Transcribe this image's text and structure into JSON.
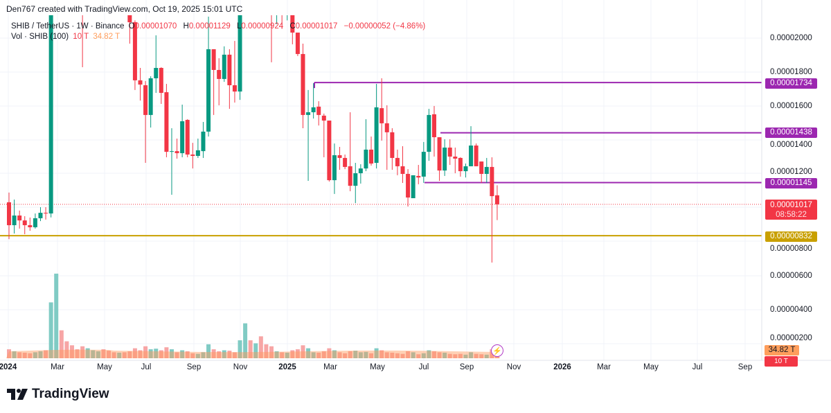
{
  "attribution": "Den767 created with TradingView.com, Oct 19, 2025 15:01 UTC",
  "legend": {
    "symbol": "SHIB / TetherUS · 1W · Binance",
    "open_label": "O",
    "open": "0.00001070",
    "high_label": "H",
    "high": "0.00001129",
    "low_label": "L",
    "low": "0.00000924",
    "close_label": "C",
    "close": "0.00001017",
    "change": "−0.00000052 (−4.86%)",
    "volume_label": "Vol · SHIB (100)",
    "volume": "10 T",
    "volume_ma": "34.82 T"
  },
  "colors": {
    "up": "#089981",
    "down": "#f23645",
    "level": "#9c27b0",
    "support": "#c9a000",
    "volume_ma": "#ff9e5c"
  },
  "price_axis": {
    "ticks": [
      "0.00002000",
      "0.00001800",
      "0.00001600",
      "0.00001400",
      "0.00001200",
      "0.00000800",
      "0.00000600",
      "0.00000400",
      "0.00000200"
    ]
  },
  "price_tags": {
    "level_1": "0.00001734",
    "level_2": "0.00001438",
    "level_3": "0.00001145",
    "last_price": "0.00001017",
    "countdown": "08:58:22",
    "support": "0.00000832",
    "volume_ma": "34.82 T",
    "volume": "10 T"
  },
  "time_axis": {
    "labels": [
      "2024",
      "Mar",
      "May",
      "Jul",
      "Sep",
      "Nov",
      "2025",
      "Mar",
      "May",
      "Jul",
      "Sep",
      "Nov",
      "2026",
      "Mar",
      "May",
      "Jul",
      "Sep"
    ]
  },
  "brand": "TradingView",
  "chart_data": {
    "type": "candlestick",
    "interval": "1W",
    "levels": [
      1.734e-05,
      1.438e-05,
      1.145e-05,
      8.32e-06
    ],
    "candles_ohlc": [
      [
        1.029e-05,
        1.086e-05,
        8.12e-06,
        8.94e-06
      ],
      [
        8.94e-06,
        1.045e-05,
        8.45e-06,
        9.51e-06
      ],
      [
        9.51e-06,
        9.8e-06,
        8.74e-06,
        9.22e-06
      ],
      [
        9.22e-06,
        9.47e-06,
        8.41e-06,
        8.94e-06
      ],
      [
        8.94e-06,
        9.39e-06,
        8.61e-06,
        8.82e-06
      ],
      [
        8.82e-06,
        9.63e-06,
        8.74e-06,
        9.35e-06
      ],
      [
        9.35e-06,
        1e-05,
        9.18e-06,
        9.67e-06
      ],
      [
        9.67e-06,
        1e-05,
        9.27e-06,
        9.63e-06
      ],
      [
        9.63e-06,
        2.9e-05,
        9.4e-06,
        2.72e-05
      ],
      [
        2.72e-05,
        4.5e-05,
        2.5e-05,
        3.4e-05
      ],
      [
        3.4e-05,
        3.9e-05,
        2.7e-05,
        3.05e-05
      ],
      [
        3.05e-05,
        3.3e-05,
        2.65e-05,
        2.9e-05
      ],
      [
        2.9e-05,
        3.2e-05,
        2.55e-05,
        2.8e-05
      ],
      [
        2.8e-05,
        3.05e-05,
        2.5e-05,
        2.6e-05
      ],
      [
        2.6e-05,
        2.8e-05,
        1.824e-05,
        2.3e-05
      ],
      [
        2.3e-05,
        2.75e-05,
        2.2e-05,
        2.55e-05
      ],
      [
        2.55e-05,
        2.9e-05,
        2.4e-05,
        2.7e-05
      ],
      [
        2.7e-05,
        2.95e-05,
        2.6e-05,
        2.85e-05
      ],
      [
        2.85e-05,
        3e-05,
        2.55e-05,
        2.65e-05
      ],
      [
        2.65e-05,
        2.8e-05,
        2.45e-05,
        2.5e-05
      ],
      [
        2.5e-05,
        2.65e-05,
        2.3e-05,
        2.35e-05
      ],
      [
        2.35e-05,
        2.6e-05,
        2.2e-05,
        2.45e-05
      ],
      [
        2.45e-05,
        2.55e-05,
        2.15e-05,
        2.18e-05
      ],
      [
        2.18e-05,
        2.25e-05,
        1.963e-05,
        2.089e-05
      ],
      [
        2.089e-05,
        2.1e-05,
        1.69e-05,
        1.747e-05
      ],
      [
        1.747e-05,
        1.82e-05,
        1.628e-05,
        1.722e-05
      ],
      [
        1.718e-05,
        1.743e-05,
        1.261e-05,
        1.543e-05
      ],
      [
        1.543e-05,
        1.771e-05,
        1.469e-05,
        1.759e-05
      ],
      [
        1.759e-05,
        2.012e-05,
        1.673e-05,
        1.82e-05
      ],
      [
        1.82e-05,
        1.824e-05,
        1.608e-05,
        1.673e-05
      ],
      [
        1.677e-05,
        1.726e-05,
        1.294e-05,
        1.326e-05
      ],
      [
        1.326e-05,
        1.465e-05,
        1.073e-05,
        1.33e-05
      ],
      [
        1.33e-05,
        1.404e-05,
        1.286e-05,
        1.318e-05
      ],
      [
        1.318e-05,
        1.604e-05,
        1.294e-05,
        1.506e-05
      ],
      [
        1.514e-05,
        1.518e-05,
        1.294e-05,
        1.31e-05
      ],
      [
        1.31e-05,
        1.379e-05,
        1.228e-05,
        1.302e-05
      ],
      [
        1.302e-05,
        1.404e-05,
        1.29e-05,
        1.335e-05
      ],
      [
        1.33e-05,
        1.502e-05,
        1.29e-05,
        1.445e-05
      ],
      [
        1.445e-05,
        2.122e-05,
        1.416e-05,
        1.93e-05
      ],
      [
        1.93e-05,
        1.93e-05,
        1.543e-05,
        1.808e-05
      ],
      [
        1.808e-05,
        1.877e-05,
        1.6e-05,
        1.755e-05
      ],
      [
        1.755e-05,
        1.947e-05,
        1.738e-05,
        1.898e-05
      ],
      [
        1.898e-05,
        1.93e-05,
        1.579e-05,
        1.718e-05
      ],
      [
        1.718e-05,
        1.979e-05,
        1.616e-05,
        1.681e-05
      ],
      [
        1.681e-05,
        2.7e-05,
        1.632e-05,
        2.5e-05
      ],
      [
        2.5e-05,
        3e-05,
        2.3e-05,
        2.7e-05
      ],
      [
        2.7e-05,
        2.9e-05,
        2.35e-05,
        2.45e-05
      ],
      [
        2.45e-05,
        2.7e-05,
        2.3e-05,
        2.6e-05
      ],
      [
        2.6e-05,
        2.85e-05,
        2.4e-05,
        2.5e-05
      ],
      [
        2.5e-05,
        2.7e-05,
        2.35e-05,
        2.4e-05
      ],
      [
        2.4e-05,
        2.55e-05,
        1.853e-05,
        2.2e-05
      ],
      [
        2.2e-05,
        2.45e-05,
        2.077e-05,
        2.3e-05
      ],
      [
        2.3e-05,
        2.4e-05,
        2.05e-05,
        2.15e-05
      ],
      [
        2.15e-05,
        2.3e-05,
        2.1e-05,
        2.2e-05
      ],
      [
        2.18e-05,
        2.23e-05,
        1.959e-05,
        2.028e-05
      ],
      [
        2.028e-05,
        2.028e-05,
        1.89e-05,
        1.902e-05
      ],
      [
        1.902e-05,
        1.963e-05,
        1.465e-05,
        1.543e-05
      ],
      [
        1.543e-05,
        1.69e-05,
        1.155e-05,
        1.559e-05
      ],
      [
        1.559e-05,
        1.73e-05,
        1.522e-05,
        1.588e-05
      ],
      [
        1.592e-05,
        1.624e-05,
        1.481e-05,
        1.543e-05
      ],
      [
        1.539e-05,
        1.551e-05,
        1.294e-05,
        1.51e-05
      ],
      [
        1.51e-05,
        1.51e-05,
        1.151e-05,
        1.159e-05
      ],
      [
        1.159e-05,
        1.375e-05,
        1.078e-05,
        1.306e-05
      ],
      [
        1.306e-05,
        1.355e-05,
        1.22e-05,
        1.29e-05
      ],
      [
        1.29e-05,
        1.31e-05,
        1.224e-05,
        1.237e-05
      ],
      [
        1.241e-05,
        1.559e-05,
        1.094e-05,
        1.126e-05
      ],
      [
        1.126e-05,
        1.261e-05,
        1.024e-05,
        1.2e-05
      ],
      [
        1.2e-05,
        1.253e-05,
        1.139e-05,
        1.228e-05
      ],
      [
        1.228e-05,
        1.518e-05,
        1.212e-05,
        1.339e-05
      ],
      [
        1.339e-05,
        1.416e-05,
        1.245e-05,
        1.257e-05
      ],
      [
        1.261e-05,
        1.726e-05,
        1.228e-05,
        1.588e-05
      ],
      [
        1.583e-05,
        1.759e-05,
        1.392e-05,
        1.494e-05
      ],
      [
        1.494e-05,
        1.6e-05,
        1.22e-05,
        1.441e-05
      ],
      [
        1.441e-05,
        1.465e-05,
        1.22e-05,
        1.29e-05
      ],
      [
        1.29e-05,
        1.339e-05,
        1.188e-05,
        1.241e-05
      ],
      [
        1.241e-05,
        1.359e-05,
        1.143e-05,
        1.196e-05
      ],
      [
        1.196e-05,
        1.224e-05,
        1.004e-05,
        1.057e-05
      ],
      [
        1.053e-05,
        1.188e-05,
        1.053e-05,
        1.188e-05
      ],
      [
        1.184e-05,
        1.249e-05,
        1.135e-05,
        1.175e-05
      ],
      [
        1.18e-05,
        1.384e-05,
        1.143e-05,
        1.326e-05
      ],
      [
        1.326e-05,
        1.579e-05,
        1.273e-05,
        1.543e-05
      ],
      [
        1.547e-05,
        1.596e-05,
        1.298e-05,
        1.412e-05
      ],
      [
        1.412e-05,
        1.412e-05,
        1.155e-05,
        1.216e-05
      ],
      [
        1.216e-05,
        1.4e-05,
        1.184e-05,
        1.351e-05
      ],
      [
        1.351e-05,
        1.4e-05,
        1.249e-05,
        1.298e-05
      ],
      [
        1.298e-05,
        1.351e-05,
        1.2e-05,
        1.286e-05
      ],
      [
        1.29e-05,
        1.294e-05,
        1.18e-05,
        1.212e-05
      ],
      [
        1.212e-05,
        1.257e-05,
        1.175e-05,
        1.241e-05
      ],
      [
        1.241e-05,
        1.477e-05,
        1.241e-05,
        1.363e-05
      ],
      [
        1.363e-05,
        1.375e-05,
        1.241e-05,
        1.241e-05
      ],
      [
        1.269e-05,
        1.269e-05,
        1.143e-05,
        1.196e-05
      ],
      [
        1.196e-05,
        1.29e-05,
        1.143e-05,
        1.237e-05
      ],
      [
        1.237e-05,
        1.294e-05,
        6.74e-06,
        1.065e-05
      ],
      [
        1.07e-05,
        1.129e-05,
        9.24e-06,
        1.017e-05
      ]
    ],
    "volume_T": [
      45,
      35,
      30,
      28,
      25,
      30,
      35,
      40,
      280,
      424,
      140,
      85,
      65,
      45,
      60,
      50,
      40,
      35,
      45,
      38,
      30,
      28,
      30,
      35,
      50,
      40,
      60,
      45,
      48,
      40,
      55,
      45,
      30,
      40,
      35,
      25,
      22,
      30,
      70,
      45,
      35,
      40,
      38,
      30,
      90,
      175,
      90,
      75,
      110,
      70,
      60,
      35,
      30,
      28,
      40,
      45,
      65,
      50,
      30,
      28,
      35,
      50,
      40,
      30,
      25,
      35,
      38,
      30,
      32,
      25,
      50,
      40,
      30,
      28,
      25,
      22,
      35,
      30,
      20,
      25,
      40,
      35,
      30,
      28,
      22,
      20,
      22,
      18,
      30,
      22,
      20,
      18,
      45,
      10
    ],
    "volume_ma_last_T": 34.82
  }
}
